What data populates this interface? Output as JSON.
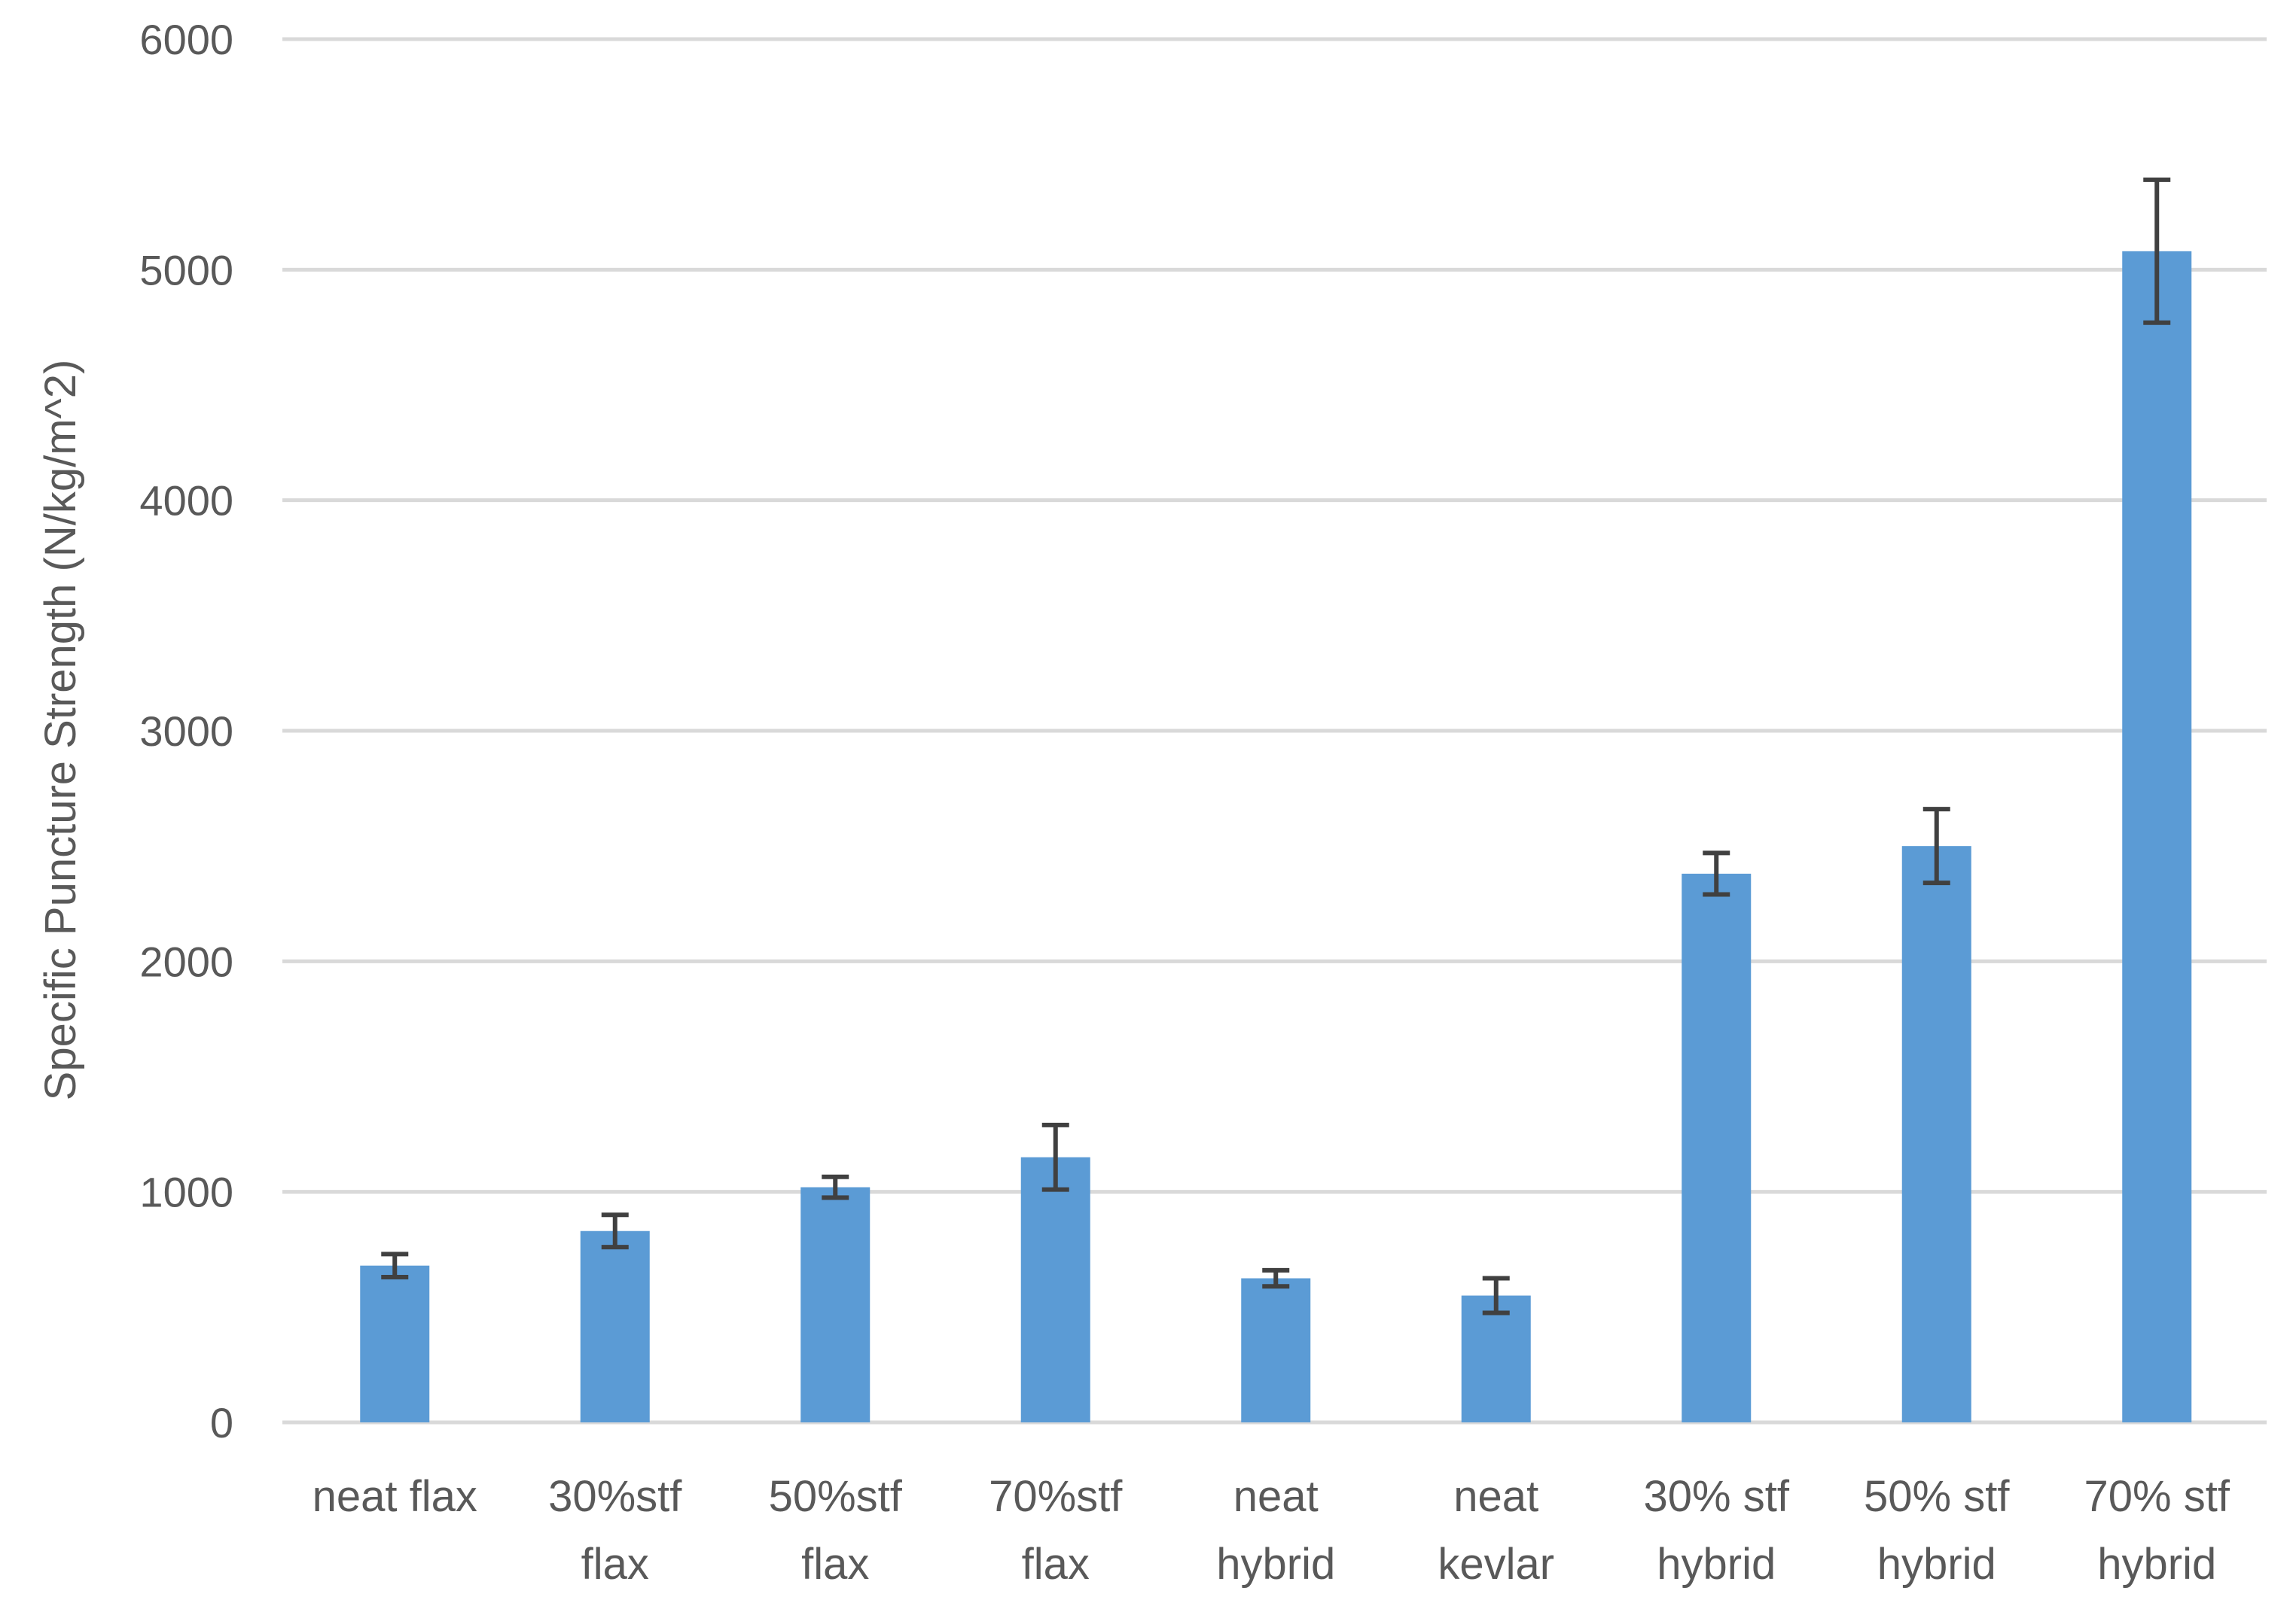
{
  "chart_data": {
    "type": "bar",
    "title": "",
    "xlabel": "",
    "ylabel": "Specific Puncture Strength (N/kg/m^2)",
    "ylim": [
      0,
      6000
    ],
    "yticks": [
      0,
      1000,
      2000,
      3000,
      4000,
      5000,
      6000
    ],
    "grid": true,
    "legend": "none",
    "bar_color": "#5B9BD5",
    "error_color": "#404040",
    "grid_color": "#D9D9D9",
    "categories": [
      [
        "neat flax"
      ],
      [
        "30%stf",
        "flax"
      ],
      [
        "50%stf",
        "flax"
      ],
      [
        "70%stf",
        "flax"
      ],
      [
        "neat",
        "hybrid"
      ],
      [
        "neat",
        "kevlar"
      ],
      [
        "30% stf",
        "hybrid"
      ],
      [
        "50% stf",
        "hybrid"
      ],
      [
        "70% stf",
        "hybrid"
      ]
    ],
    "values": [
      680,
      830,
      1020,
      1150,
      625,
      550,
      2380,
      2500,
      5080
    ],
    "error": [
      50,
      70,
      45,
      140,
      35,
      75,
      90,
      160,
      310
    ]
  }
}
